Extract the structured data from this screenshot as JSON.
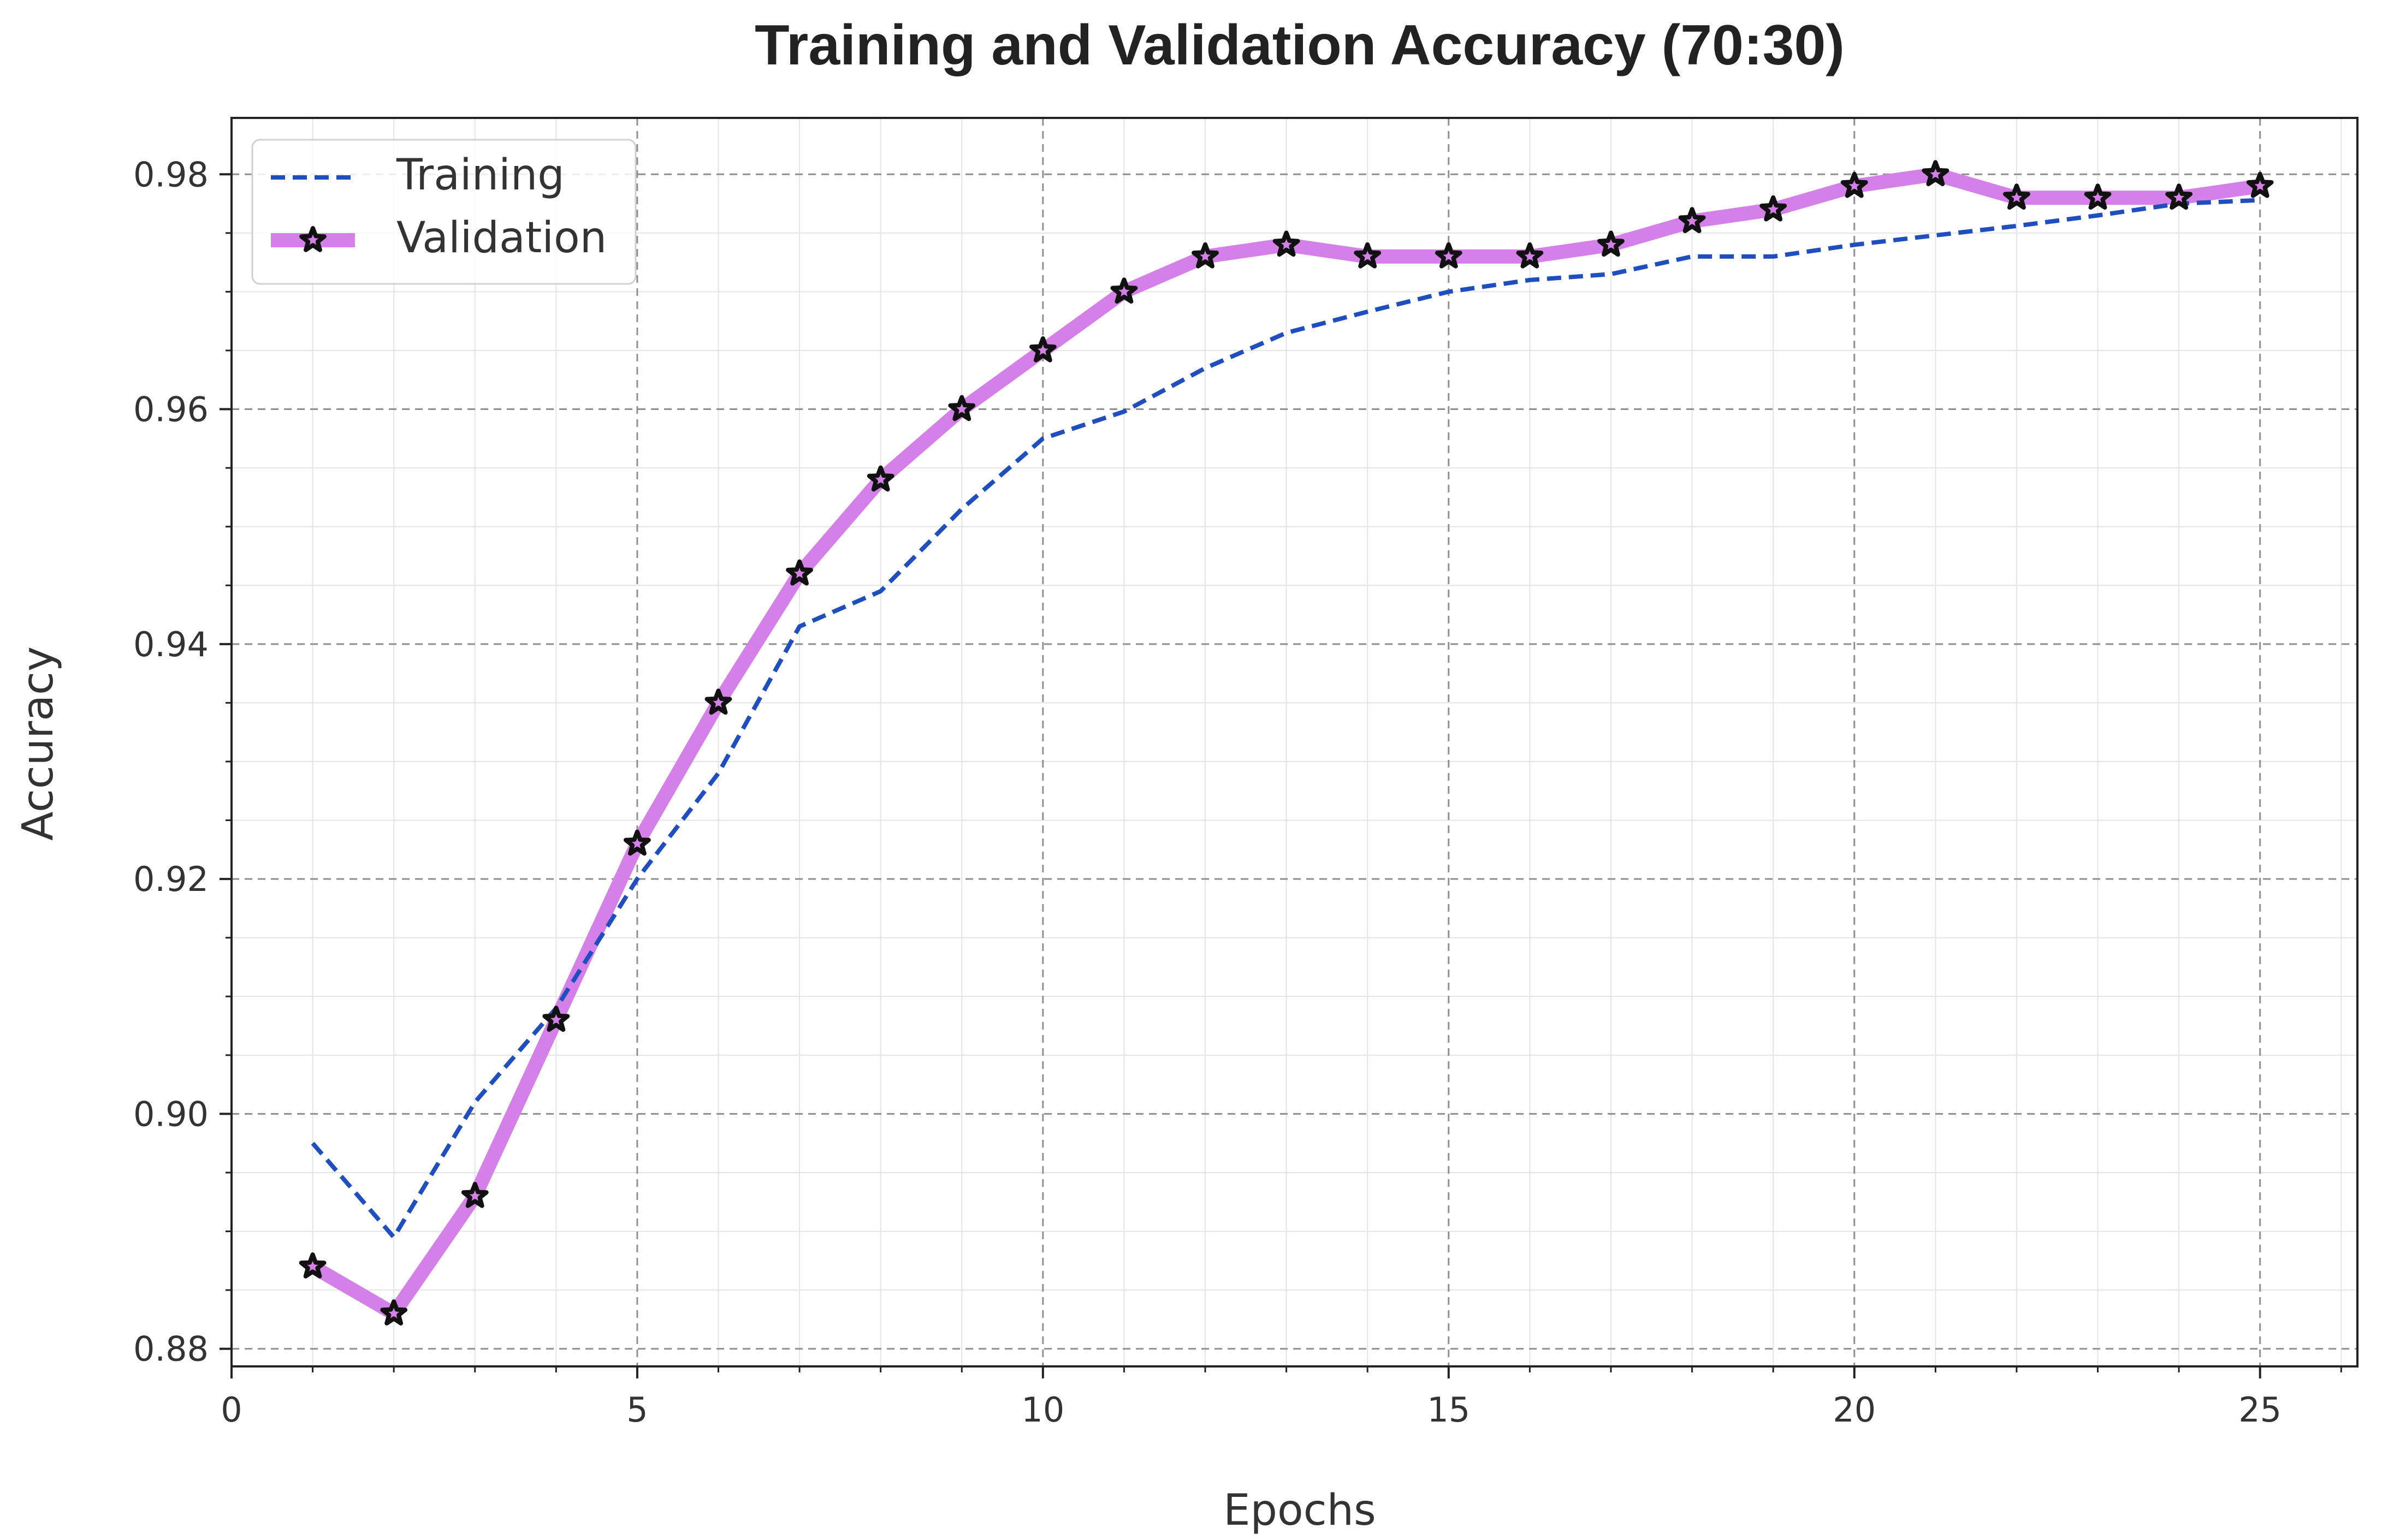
{
  "chart_data": {
    "type": "line",
    "title": "Training and Validation Accuracy (70:30)",
    "xlabel": "Epochs",
    "ylabel": "Accuracy",
    "xlim": [
      0,
      26.2
    ],
    "ylim": [
      0.8785,
      0.9848
    ],
    "xticks": [
      0,
      5,
      10,
      15,
      20,
      25
    ],
    "yticks": [
      0.88,
      0.9,
      0.92,
      0.94,
      0.96,
      0.98
    ],
    "xtick_labels": [
      "0",
      "5",
      "10",
      "15",
      "20",
      "25"
    ],
    "ytick_labels": [
      "0.88",
      "0.90",
      "0.92",
      "0.94",
      "0.96",
      "0.98"
    ],
    "x_minor_step": 1,
    "y_minor_step": 0.005,
    "grid": true,
    "legend_position": "top-left",
    "legend": [
      "Training",
      "Validation"
    ],
    "x": [
      1,
      2,
      3,
      4,
      5,
      6,
      7,
      8,
      9,
      10,
      11,
      12,
      13,
      14,
      15,
      16,
      17,
      18,
      19,
      20,
      21,
      22,
      23,
      24,
      25
    ],
    "series": [
      {
        "name": "Training",
        "style": "dashed",
        "color": "#1f4fbf",
        "values": [
          0.8975,
          0.8895,
          0.901,
          0.909,
          0.92,
          0.929,
          0.9415,
          0.9445,
          0.9515,
          0.9575,
          0.9598,
          0.9635,
          0.9665,
          0.9683,
          0.97,
          0.971,
          0.9715,
          0.973,
          0.973,
          0.974,
          0.9748,
          0.9756,
          0.9765,
          0.9775,
          0.9778
        ]
      },
      {
        "name": "Validation",
        "style": "solid-star-markers",
        "color": "#d580e8",
        "marker_color": "#111111",
        "values": [
          0.887,
          0.883,
          0.893,
          0.908,
          0.923,
          0.935,
          0.946,
          0.954,
          0.96,
          0.965,
          0.97,
          0.973,
          0.974,
          0.973,
          0.973,
          0.973,
          0.974,
          0.976,
          0.977,
          0.979,
          0.98,
          0.978,
          0.978,
          0.978,
          0.979
        ]
      }
    ]
  }
}
